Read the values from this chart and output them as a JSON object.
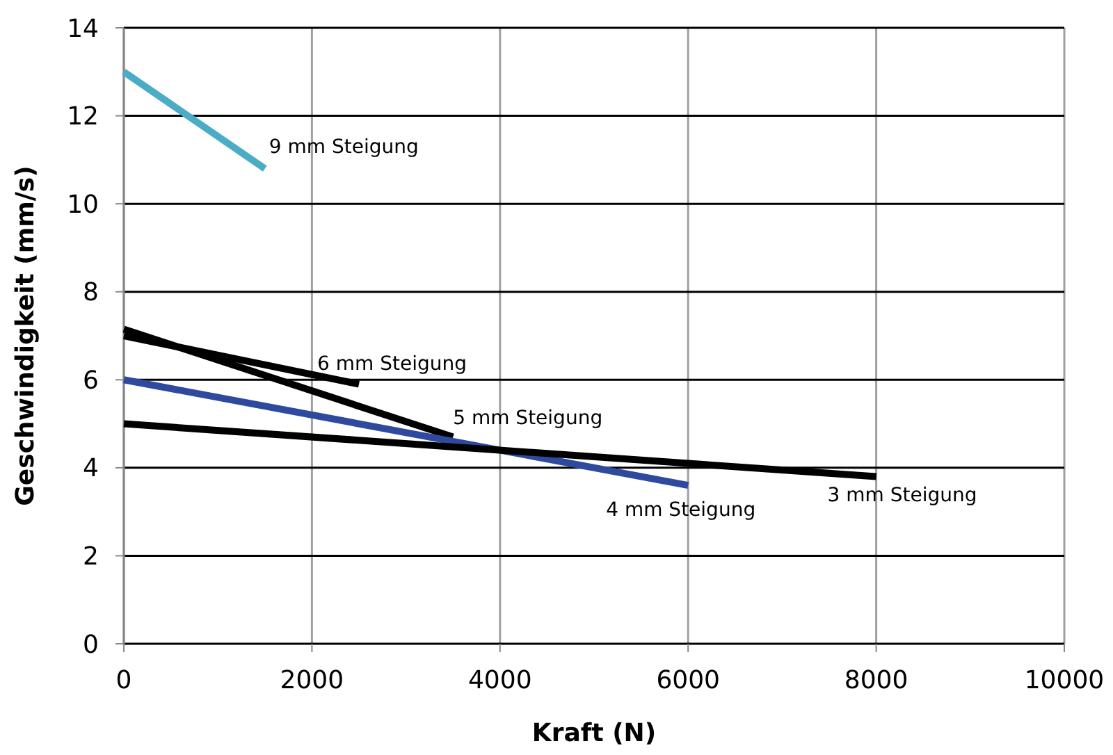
{
  "chart_data": {
    "type": "line",
    "xlabel": "Kraft (N)",
    "ylabel": "Geschwindigkeit (mm/s)",
    "xlim": [
      0,
      10000
    ],
    "ylim": [
      0,
      14
    ],
    "xticks": [
      0,
      2000,
      4000,
      6000,
      8000,
      10000
    ],
    "yticks": [
      0,
      2,
      4,
      6,
      8,
      10,
      12,
      14
    ],
    "grid": true,
    "line_style": "solid",
    "series": [
      {
        "name": "9 mm Steigung",
        "color": "#4bacc6",
        "x": [
          0,
          1500
        ],
        "values": [
          13,
          10.8
        ]
      },
      {
        "name": "6 mm Steigung",
        "color": "#000000",
        "x": [
          0,
          2500
        ],
        "values": [
          7.0,
          5.9
        ]
      },
      {
        "name": "5 mm Steigung",
        "color": "#000000",
        "x": [
          0,
          3500
        ],
        "values": [
          7.15,
          4.7
        ]
      },
      {
        "name": "4 mm Steigung",
        "color": "#2e4a9e",
        "x": [
          0,
          6000
        ],
        "values": [
          6,
          3.6
        ]
      },
      {
        "name": "3 mm Steigung",
        "color": "#000000",
        "x": [
          0,
          8000
        ],
        "values": [
          5,
          3.8
        ]
      }
    ]
  }
}
